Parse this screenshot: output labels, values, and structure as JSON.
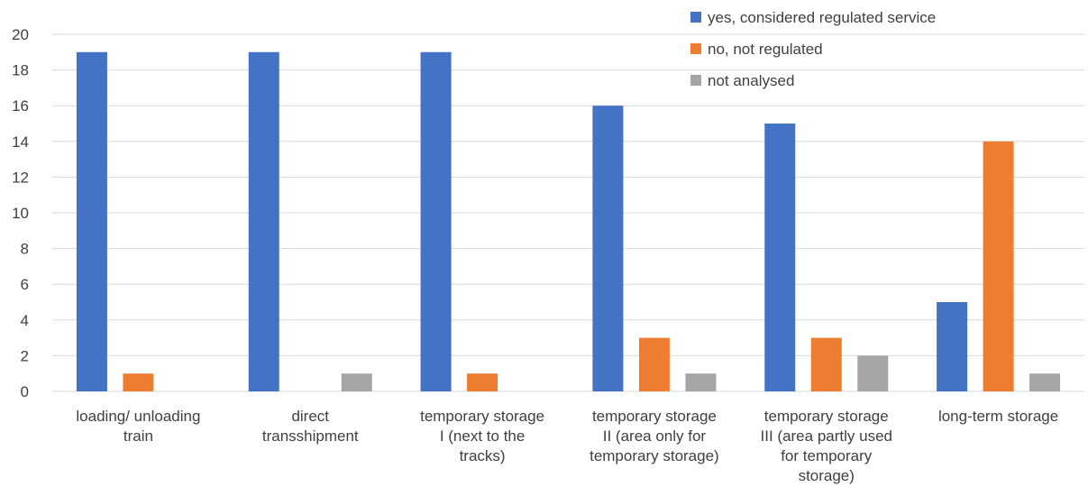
{
  "chart_data": {
    "type": "bar",
    "categories": [
      [
        "loading/ unloading",
        "train"
      ],
      [
        "direct",
        "transshipment"
      ],
      [
        "temporary storage",
        "I (next to the",
        "tracks)"
      ],
      [
        "temporary storage",
        "II (area only for",
        "temporary storage)"
      ],
      [
        "temporary storage",
        "III (area partly used",
        "for temporary",
        "storage)"
      ],
      [
        "long-term storage"
      ]
    ],
    "series": [
      {
        "name": "yes, considered regulated service",
        "color": "#4472C4",
        "values": [
          19,
          19,
          19,
          16,
          15,
          5
        ]
      },
      {
        "name": "no, not regulated",
        "color": "#ED7D31",
        "values": [
          1,
          0,
          1,
          3,
          3,
          14
        ]
      },
      {
        "name": "not analysed",
        "color": "#A5A5A5",
        "values": [
          0,
          1,
          0,
          1,
          2,
          1
        ]
      }
    ],
    "ylim": [
      0,
      20
    ],
    "yticks": [
      0,
      2,
      4,
      6,
      8,
      10,
      12,
      14,
      16,
      18,
      20
    ],
    "grid": true,
    "legend_position": "top-right"
  }
}
